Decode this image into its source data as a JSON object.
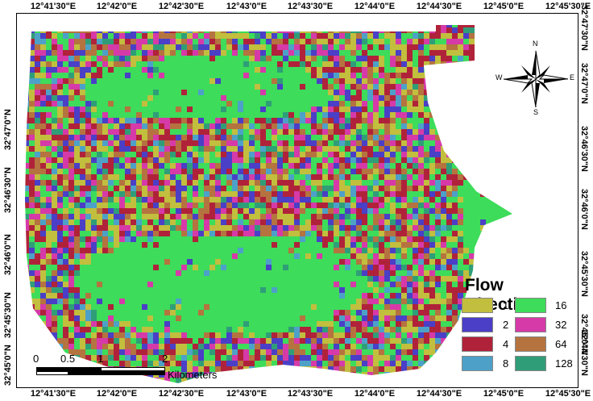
{
  "top_ticks": [
    "12°41'30\"E",
    "12°42'0\"E",
    "12°42'30\"E",
    "12°43'0\"E",
    "12°43'30\"E",
    "12°44'0\"E",
    "12°44'30\"E",
    "12°45'0\"E",
    "12°45'30\"E"
  ],
  "bottom_ticks": [
    "12°41'30\"E",
    "12°42'0\"E",
    "12°42'30\"E",
    "12°43'0\"E",
    "12°43'30\"E",
    "12°44'0\"E",
    "12°44'30\"E",
    "12°45'0\"E",
    "12°45'30\"E"
  ],
  "left_ticks": [
    "32°47'0\"N",
    "32°46'30\"N",
    "32°46'0\"N",
    "32°45'30\"N",
    "32°45'0\"N"
  ],
  "right_ticks": [
    "32°47'30\"N",
    "32°47'0\"N",
    "32°46'30\"N",
    "32°46'0\"N",
    "32°45'30\"N",
    "32°45'0\"N",
    "32°44'30\"N"
  ],
  "north_arrow": {
    "n": "N",
    "s": "S",
    "e": "E",
    "w": "W"
  },
  "legend": {
    "title": "Flow Direction",
    "items": [
      {
        "value": "1",
        "color": "#c2be3e"
      },
      {
        "value": "2",
        "color": "#4a3fc6"
      },
      {
        "value": "4",
        "color": "#b0223a"
      },
      {
        "value": "8",
        "color": "#4da1c8"
      },
      {
        "value": "16",
        "color": "#3ddc5a"
      },
      {
        "value": "32",
        "color": "#d63aa8"
      },
      {
        "value": "64",
        "color": "#b5733f"
      },
      {
        "value": "128",
        "color": "#2f9e78"
      }
    ]
  },
  "scale_bar": {
    "labels": [
      "0",
      "0.5",
      "1",
      "2"
    ],
    "unit": "Kilometers"
  }
}
